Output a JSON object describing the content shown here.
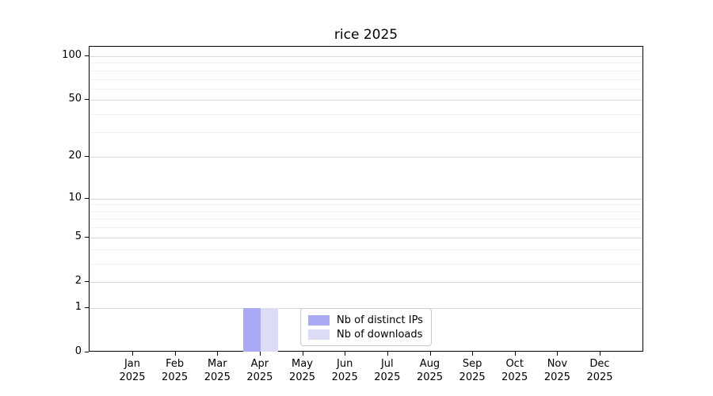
{
  "title": "rice 2025",
  "colors": {
    "series_ips": "#a9a9f4",
    "series_downloads": "#dcdcf7",
    "grid_major": "#d9d9d9",
    "grid_minor": "#f0f0f0",
    "spine": "#000000",
    "legend_border": "#cccccc",
    "background": "#ffffff",
    "text": "#000000"
  },
  "chart_data": {
    "type": "bar",
    "title": "rice 2025",
    "xlabel": "",
    "ylabel": "",
    "categories": [
      "Jan 2025",
      "Feb 2025",
      "Mar 2025",
      "Apr 2025",
      "May 2025",
      "Jun 2025",
      "Jul 2025",
      "Aug 2025",
      "Sep 2025",
      "Oct 2025",
      "Nov 2025",
      "Dec 2025"
    ],
    "x_tick_months": [
      "Jan",
      "Feb",
      "Mar",
      "Apr",
      "May",
      "Jun",
      "Jul",
      "Aug",
      "Sep",
      "Oct",
      "Nov",
      "Dec"
    ],
    "x_tick_year": "2025",
    "series": [
      {
        "name": "Nb of distinct IPs",
        "color": "#a9a9f4",
        "values": [
          0,
          0,
          0,
          1,
          0,
          0,
          0,
          0,
          0,
          0,
          0,
          0
        ]
      },
      {
        "name": "Nb of downloads",
        "color": "#dcdcf7",
        "values": [
          0,
          0,
          0,
          1,
          0,
          0,
          0,
          0,
          0,
          0,
          0,
          0
        ]
      }
    ],
    "y_scale": "log10(value+1)",
    "ylim": [
      0,
      116
    ],
    "y_ticks_major": [
      0,
      1,
      2,
      5,
      10,
      20,
      50,
      100
    ],
    "y_ticks_minor": [
      3,
      4,
      6,
      7,
      8,
      9,
      30,
      40,
      60,
      70,
      80,
      90
    ],
    "grid": true,
    "legend_position": "lower center"
  }
}
